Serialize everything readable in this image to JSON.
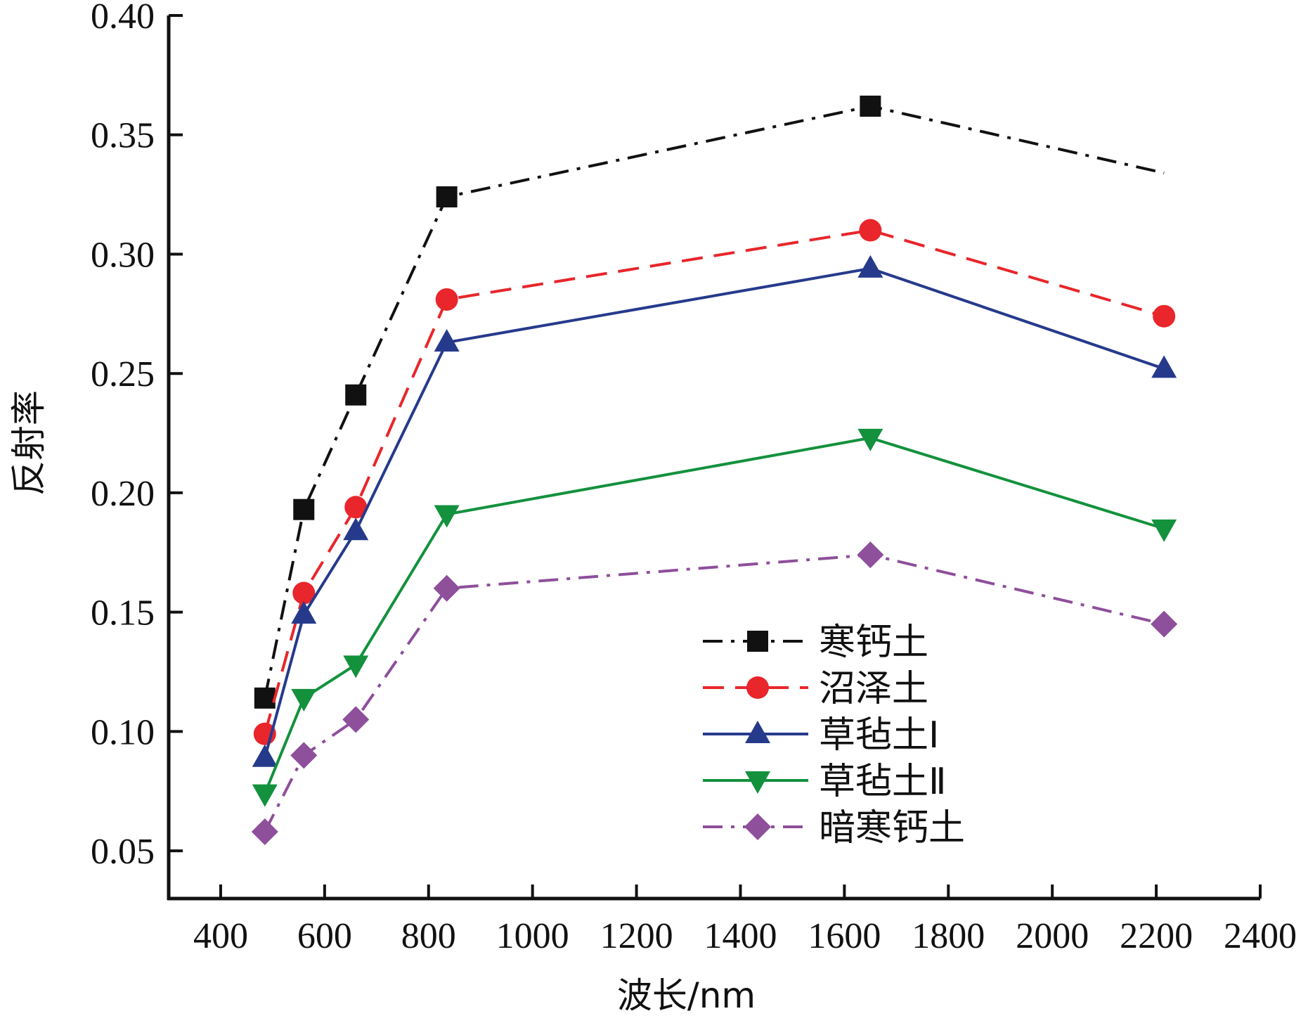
{
  "chart_data": {
    "type": "line",
    "xlabel": "波长/nm",
    "ylabel": "反射率",
    "xlim": [
      300,
      2400
    ],
    "ylim": [
      0.03,
      0.4
    ],
    "xticks": [
      400,
      600,
      800,
      1000,
      1200,
      1400,
      1600,
      1800,
      2000,
      2200,
      2400
    ],
    "xtick_labels": [
      "400",
      "600",
      "800",
      "1000",
      "1200",
      "1400",
      "1600",
      "1800",
      "2000",
      "2200",
      "2400"
    ],
    "yticks": [
      0.05,
      0.1,
      0.15,
      0.2,
      0.25,
      0.3,
      0.35,
      0.4
    ],
    "ytick_labels": [
      "0.05",
      "0.10",
      "0.15",
      "0.20",
      "0.25",
      "0.30",
      "0.35",
      "0.40"
    ],
    "grid": false,
    "legend_position": "bottom-right",
    "x": [
      485,
      560,
      660,
      835,
      1650,
      2215
    ],
    "series": [
      {
        "name": "寒钙土",
        "values": [
          0.114,
          0.193,
          0.241,
          0.324,
          0.362,
          0.334
        ],
        "color": "#111111",
        "dash": "dash-dot",
        "marker": "square"
      },
      {
        "name": "沼泽土",
        "values": [
          0.099,
          0.158,
          0.194,
          0.281,
          0.31,
          0.274
        ],
        "color": "#e8262b",
        "dash": "dashed",
        "marker": "circle"
      },
      {
        "name": "草毡土Ⅰ",
        "values": [
          0.089,
          0.149,
          0.184,
          0.263,
          0.294,
          0.252
        ],
        "color": "#263a8c",
        "dash": "solid",
        "marker": "triangle-up"
      },
      {
        "name": "草毡土Ⅱ",
        "values": [
          0.074,
          0.114,
          0.128,
          0.191,
          0.223,
          0.185
        ],
        "color": "#13913d",
        "dash": "solid",
        "marker": "triangle-down"
      },
      {
        "name": "暗寒钙土",
        "values": [
          0.058,
          0.09,
          0.105,
          0.16,
          0.174,
          0.145
        ],
        "color": "#8e4f9b",
        "dash": "dash-dot",
        "marker": "diamond"
      }
    ]
  }
}
